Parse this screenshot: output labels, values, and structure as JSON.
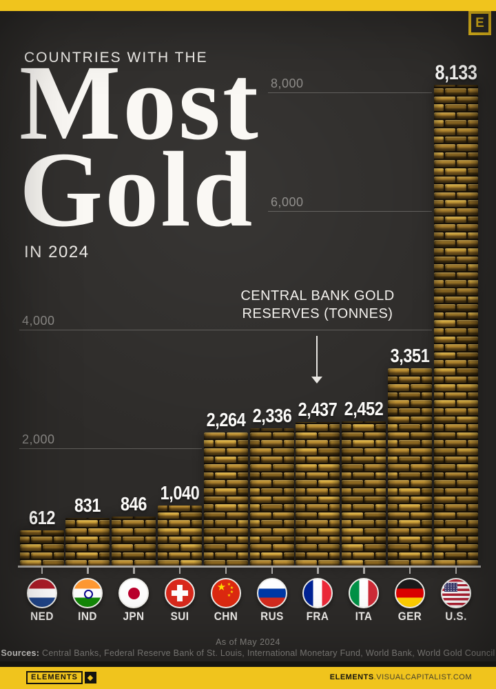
{
  "colors": {
    "accent_yellow": "#f0c41d",
    "background": "#2d2b29",
    "title_text": "#faf8f4",
    "muted_text": "#8d8b88",
    "gold_mid": "#a67e2b"
  },
  "header": {
    "logo_letter": "E",
    "kicker": "COUNTRIES WITH THE",
    "title_line1": "Most",
    "title_line2": "Gold",
    "subtitle": "IN 2024"
  },
  "annotation": {
    "line1": "CENTRAL BANK GOLD",
    "line2": "RESERVES (TONNES)"
  },
  "chart_data": {
    "type": "bar",
    "title": "Countries with the Most Gold in 2024",
    "ylabel": "CENTRAL BANK GOLD RESERVES (TONNES)",
    "unit": "tonnes",
    "ylim": [
      0,
      8400
    ],
    "legend": "none",
    "grid": "partial horizontal gridlines",
    "gridlines": [
      {
        "label": "8,000",
        "value": 8000
      },
      {
        "label": "6,000",
        "value": 6000
      },
      {
        "label": "4,000",
        "value": 4000
      },
      {
        "label": "2,000",
        "value": 2000
      }
    ],
    "categories": [
      "NED",
      "IND",
      "JPN",
      "SUI",
      "CHN",
      "RUS",
      "FRA",
      "ITA",
      "GER",
      "U.S."
    ],
    "countries": [
      "Netherlands",
      "India",
      "Japan",
      "Switzerland",
      "China",
      "Russia",
      "France",
      "Italy",
      "Germany",
      "United States"
    ],
    "values": [
      612,
      831,
      846,
      1040,
      2264,
      2336,
      2437,
      2452,
      3351,
      8133
    ],
    "value_labels": [
      "612",
      "831",
      "846",
      "1,040",
      "2,264",
      "2,336",
      "2,437",
      "2,452",
      "3,351",
      "8,133"
    ]
  },
  "footer": {
    "as_of": "As of May 2024",
    "sources_label": "Sources:",
    "sources_text": " Central Banks, Federal Reserve Bank of St. Louis, International Monetary Fund, World Bank, World Gold Council"
  },
  "bottom_bar": {
    "brand": "ELEMENTS",
    "site_bold": "ELEMENTS",
    "site_rest": ".VISUALCAPITALIST.COM"
  }
}
